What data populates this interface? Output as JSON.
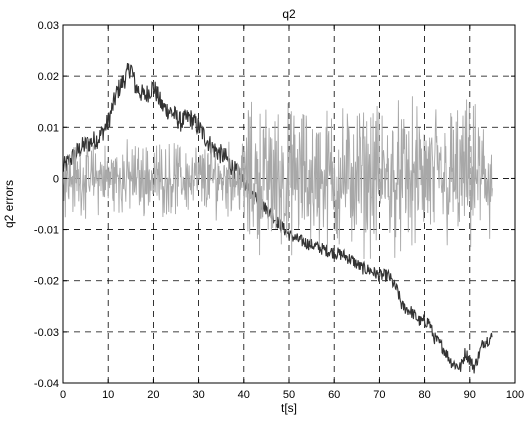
{
  "chart_data": {
    "type": "line",
    "title": "q2",
    "xlabel": "t[s]",
    "ylabel": "q2 errors",
    "xlim": [
      0,
      100
    ],
    "ylim": [
      -0.04,
      0.03
    ],
    "xticks": [
      0,
      10,
      20,
      30,
      40,
      50,
      60,
      70,
      80,
      90,
      100
    ],
    "yticks": [
      -0.04,
      -0.03,
      -0.02,
      -0.01,
      0,
      0.01,
      0.02,
      0.03
    ],
    "xtick_labels": [
      "0",
      "10",
      "20",
      "30",
      "40",
      "50",
      "60",
      "70",
      "80",
      "90",
      "100"
    ],
    "ytick_labels": [
      "-0.04",
      "-0.03",
      "-0.02",
      "-0.01",
      "0",
      "0.01",
      "0.02",
      "0.03"
    ],
    "grid": true,
    "series": [
      {
        "color": "#333333",
        "x": [
          0,
          2,
          4,
          6,
          8,
          10,
          12,
          14,
          15,
          16,
          18,
          20,
          22,
          24,
          26,
          28,
          30,
          33,
          36,
          40,
          42,
          44,
          46,
          48,
          50,
          52,
          55,
          58,
          60,
          62,
          64,
          66,
          68,
          70,
          72,
          74,
          75,
          77,
          79,
          81,
          82,
          84,
          86,
          88,
          89,
          91,
          93,
          95
        ],
        "y": [
          0.002,
          0.004,
          0.006,
          0.007,
          0.008,
          0.011,
          0.017,
          0.02,
          0.022,
          0.018,
          0.016,
          0.018,
          0.014,
          0.013,
          0.011,
          0.012,
          0.01,
          0.006,
          0.004,
          -0.001,
          -0.003,
          -0.005,
          -0.007,
          -0.009,
          -0.011,
          -0.012,
          -0.013,
          -0.014,
          -0.0145,
          -0.015,
          -0.016,
          -0.0175,
          -0.018,
          -0.019,
          -0.019,
          -0.022,
          -0.025,
          -0.026,
          -0.028,
          -0.028,
          -0.031,
          -0.033,
          -0.036,
          -0.037,
          -0.034,
          -0.037,
          -0.032,
          -0.031
        ]
      },
      {
        "color": "#a8a8a8",
        "x_range": [
          0,
          95
        ],
        "amplitude_before_40s": 0.006,
        "amplitude_after_40s": 0.012
      }
    ]
  }
}
